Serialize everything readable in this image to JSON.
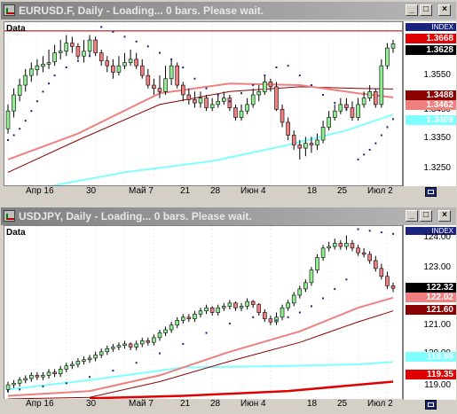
{
  "windows": [
    {
      "title": "EURUSD.F, Daily - Loading... 0 bars. Please wait.",
      "data_label": "Data",
      "index_label": "INDEX",
      "price_ticks": [
        "1.3550",
        "1.3450",
        "1.3350",
        "1.3250"
      ],
      "price_labels": [
        {
          "text": "1.3668",
          "bg": "#e00000",
          "fg": "#ffffff"
        },
        {
          "text": "1.3628",
          "bg": "#000000",
          "fg": "#ffffff"
        },
        {
          "text": "1.3488",
          "bg": "#8b0000",
          "fg": "#ffffff"
        },
        {
          "text": "1.3462",
          "bg": "#f08080",
          "fg": "#ffffff"
        },
        {
          "text": "1.3409",
          "bg": "#7fffff",
          "fg": "#ffffff"
        }
      ],
      "date_ticks": [
        "Апр 16",
        "30",
        "Май 7",
        "21",
        "28",
        "Июн 4",
        "18",
        "25",
        "Июл 2"
      ]
    },
    {
      "title": "USDJPY, Daily - Loading... 0 bars. Please wait.",
      "data_label": "Data",
      "index_label": "INDEX",
      "price_ticks": [
        "124.00",
        "123.00",
        "121.00",
        "120.00",
        "119.00"
      ],
      "price_labels": [
        {
          "text": "122.32",
          "bg": "#000000",
          "fg": "#ffffff"
        },
        {
          "text": "122.02",
          "bg": "#f08080",
          "fg": "#ffffff"
        },
        {
          "text": "121.60",
          "bg": "#8b0000",
          "fg": "#ffffff"
        },
        {
          "text": "119.98",
          "bg": "#7fffff",
          "fg": "#ffffff"
        },
        {
          "text": "119.35",
          "bg": "#e00000",
          "fg": "#ffffff"
        }
      ],
      "date_ticks": [
        "Апр 16",
        "30",
        "Май 7",
        "21",
        "28",
        "Июн 4",
        "18",
        "25",
        "Июл 2"
      ]
    }
  ],
  "chart_data": [
    {
      "type": "candlestick",
      "symbol": "EURUSD.F",
      "timeframe": "Daily",
      "ylim": [
        1.319,
        1.3695
      ],
      "open": [
        1.3365,
        1.342,
        1.3468,
        1.35,
        1.353,
        1.3548,
        1.3558,
        1.3565,
        1.3572,
        1.36,
        1.3605,
        1.363,
        1.362,
        1.359,
        1.3605,
        1.364,
        1.36,
        1.3575,
        1.356,
        1.354,
        1.356,
        1.357,
        1.358,
        1.356,
        1.353,
        1.35,
        1.349,
        1.348,
        1.352,
        1.356,
        1.35,
        1.347,
        1.3455,
        1.3445,
        1.346,
        1.343,
        1.344,
        1.345,
        1.346,
        1.343,
        1.34,
        1.342,
        1.344,
        1.347,
        1.348,
        1.351,
        1.3495,
        1.3425,
        1.3385,
        1.3345,
        1.3315,
        1.3305,
        1.332,
        1.3315,
        1.333,
        1.337,
        1.34,
        1.342,
        1.344,
        1.343,
        1.34,
        1.344,
        1.346,
        1.348,
        1.344,
        1.356,
        1.3615
      ],
      "close": [
        1.342,
        1.347,
        1.35,
        1.353,
        1.355,
        1.356,
        1.3565,
        1.357,
        1.36,
        1.3605,
        1.363,
        1.362,
        1.359,
        1.3605,
        1.364,
        1.36,
        1.3575,
        1.356,
        1.354,
        1.356,
        1.357,
        1.358,
        1.356,
        1.353,
        1.35,
        1.349,
        1.348,
        1.352,
        1.356,
        1.35,
        1.347,
        1.3455,
        1.3445,
        1.346,
        1.343,
        1.344,
        1.345,
        1.346,
        1.343,
        1.34,
        1.342,
        1.344,
        1.347,
        1.348,
        1.351,
        1.3495,
        1.3425,
        1.3385,
        1.3345,
        1.3315,
        1.3305,
        1.332,
        1.3315,
        1.333,
        1.337,
        1.34,
        1.342,
        1.344,
        1.343,
        1.34,
        1.344,
        1.346,
        1.348,
        1.344,
        1.356,
        1.3615,
        1.3628
      ],
      "high": [
        1.344,
        1.349,
        1.352,
        1.355,
        1.357,
        1.358,
        1.359,
        1.361,
        1.3625,
        1.364,
        1.3655,
        1.365,
        1.363,
        1.364,
        1.3655,
        1.365,
        1.361,
        1.359,
        1.358,
        1.359,
        1.36,
        1.361,
        1.36,
        1.358,
        1.355,
        1.352,
        1.353,
        1.356,
        1.358,
        1.357,
        1.351,
        1.349,
        1.348,
        1.348,
        1.347,
        1.346,
        1.347,
        1.348,
        1.347,
        1.344,
        1.344,
        1.346,
        1.349,
        1.35,
        1.353,
        1.352,
        1.351,
        1.344,
        1.34,
        1.336,
        1.333,
        1.334,
        1.334,
        1.335,
        1.339,
        1.342,
        1.344,
        1.346,
        1.346,
        1.345,
        1.346,
        1.348,
        1.35,
        1.349,
        1.358,
        1.363,
        1.364
      ],
      "low": [
        1.335,
        1.34,
        1.345,
        1.348,
        1.351,
        1.353,
        1.354,
        1.355,
        1.356,
        1.358,
        1.359,
        1.36,
        1.358,
        1.357,
        1.359,
        1.359,
        1.356,
        1.354,
        1.352,
        1.353,
        1.355,
        1.356,
        1.355,
        1.352,
        1.349,
        1.347,
        1.346,
        1.347,
        1.35,
        1.349,
        1.345,
        1.344,
        1.343,
        1.343,
        1.342,
        1.342,
        1.343,
        1.344,
        1.342,
        1.339,
        1.339,
        1.341,
        1.343,
        1.345,
        1.347,
        1.348,
        1.342,
        1.337,
        1.333,
        1.33,
        1.327,
        1.328,
        1.329,
        1.33,
        1.332,
        1.336,
        1.339,
        1.341,
        1.342,
        1.339,
        1.339,
        1.343,
        1.345,
        1.343,
        1.343,
        1.355,
        1.36
      ],
      "ma_fast": {
        "color": "#f08080",
        "points": [
          [
            0,
            1.327
          ],
          [
            12,
            1.335
          ],
          [
            26,
            1.3475
          ],
          [
            38,
            1.3505
          ],
          [
            50,
            1.35
          ],
          [
            60,
            1.3475
          ],
          [
            66,
            1.3462
          ]
        ]
      },
      "ma_mid": {
        "color": "#8b0000",
        "points": [
          [
            0,
            1.323
          ],
          [
            12,
            1.333
          ],
          [
            26,
            1.344
          ],
          [
            38,
            1.348
          ],
          [
            50,
            1.3495
          ],
          [
            60,
            1.349
          ],
          [
            66,
            1.3488
          ]
        ]
      },
      "ma_slow": {
        "color": "#7fffff",
        "points": [
          [
            8,
            1.319
          ],
          [
            20,
            1.323
          ],
          [
            35,
            1.3265
          ],
          [
            48,
            1.3315
          ],
          [
            58,
            1.336
          ],
          [
            66,
            1.3409
          ]
        ]
      },
      "resistance": {
        "color": "#8b0000",
        "value": 1.3668
      },
      "sar": [
        [
          0,
          1.333
        ],
        [
          1,
          1.3345
        ],
        [
          2,
          1.3365
        ],
        [
          3,
          1.339
        ],
        [
          4,
          1.342
        ],
        [
          5,
          1.345
        ],
        [
          6,
          1.348
        ],
        [
          7,
          1.3505
        ],
        [
          8,
          1.353
        ],
        [
          10,
          1.3555
        ],
        [
          12,
          1.3575
        ],
        [
          14,
          1.359
        ],
        [
          16,
          1.368
        ],
        [
          18,
          1.3665
        ],
        [
          20,
          1.365
        ],
        [
          22,
          1.3635
        ],
        [
          24,
          1.362
        ],
        [
          26,
          1.36
        ],
        [
          28,
          1.358
        ],
        [
          30,
          1.3555
        ],
        [
          32,
          1.352
        ],
        [
          34,
          1.349
        ],
        [
          36,
          1.347
        ],
        [
          38,
          1.345
        ],
        [
          40,
          1.3475
        ],
        [
          42,
          1.35
        ],
        [
          44,
          1.353
        ],
        [
          46,
          1.3555
        ],
        [
          48,
          1.356
        ],
        [
          50,
          1.353
        ],
        [
          52,
          1.35
        ],
        [
          54,
          1.347
        ],
        [
          56,
          1.3445
        ],
        [
          58,
          1.3425
        ],
        [
          60,
          1.327
        ],
        [
          61,
          1.3285
        ],
        [
          62,
          1.33
        ],
        [
          63,
          1.332
        ],
        [
          64,
          1.3345
        ],
        [
          65,
          1.337
        ],
        [
          66,
          1.3395
        ]
      ]
    },
    {
      "type": "candlestick",
      "symbol": "USDJPY",
      "timeframe": "Daily",
      "ylim": [
        118.8,
        124.3
      ],
      "open": [
        119.1,
        119.25,
        119.3,
        119.4,
        119.45,
        119.55,
        119.5,
        119.55,
        119.65,
        119.6,
        119.75,
        119.85,
        119.9,
        120.0,
        120.05,
        120.1,
        120.2,
        120.3,
        120.4,
        120.45,
        120.5,
        120.55,
        120.45,
        120.55,
        120.65,
        120.6,
        120.75,
        120.9,
        121.0,
        121.15,
        121.3,
        121.4,
        121.35,
        121.5,
        121.6,
        121.7,
        121.55,
        121.7,
        121.75,
        121.85,
        121.7,
        121.75,
        121.9,
        121.8,
        121.55,
        121.35,
        121.25,
        121.4,
        121.7,
        121.85,
        122.1,
        122.3,
        122.5,
        122.9,
        123.3,
        123.6,
        123.65,
        123.75,
        123.65,
        123.75,
        123.6,
        123.45,
        123.4,
        123.2,
        122.95,
        122.7,
        122.4
      ],
      "close": [
        119.25,
        119.3,
        119.4,
        119.45,
        119.55,
        119.5,
        119.55,
        119.65,
        119.6,
        119.75,
        119.85,
        119.9,
        120.0,
        120.05,
        120.1,
        120.2,
        120.3,
        120.4,
        120.45,
        120.5,
        120.55,
        120.45,
        120.55,
        120.65,
        120.6,
        120.75,
        120.9,
        121.0,
        121.15,
        121.3,
        121.4,
        121.35,
        121.5,
        121.6,
        121.7,
        121.55,
        121.7,
        121.75,
        121.85,
        121.7,
        121.75,
        121.9,
        121.8,
        121.55,
        121.35,
        121.25,
        121.4,
        121.7,
        121.85,
        122.1,
        122.3,
        122.5,
        122.9,
        123.3,
        123.6,
        123.65,
        123.75,
        123.65,
        123.75,
        123.6,
        123.45,
        123.4,
        123.2,
        122.95,
        122.7,
        122.4,
        122.32
      ],
      "high": [
        119.35,
        119.4,
        119.5,
        119.55,
        119.65,
        119.65,
        119.65,
        119.75,
        119.75,
        119.85,
        119.95,
        120.0,
        120.1,
        120.15,
        120.2,
        120.3,
        120.4,
        120.5,
        120.55,
        120.6,
        120.65,
        120.6,
        120.65,
        120.75,
        120.75,
        120.85,
        121.0,
        121.1,
        121.25,
        121.4,
        121.5,
        121.5,
        121.6,
        121.7,
        121.8,
        121.75,
        121.8,
        121.85,
        121.95,
        121.9,
        121.85,
        122.0,
        121.95,
        121.85,
        121.65,
        121.45,
        121.55,
        121.8,
        121.95,
        122.2,
        122.4,
        122.6,
        123.0,
        123.4,
        123.7,
        123.8,
        123.9,
        123.85,
        124.0,
        123.85,
        123.7,
        123.6,
        123.5,
        123.35,
        123.1,
        122.85,
        122.5
      ],
      "low": [
        119.0,
        119.15,
        119.2,
        119.3,
        119.35,
        119.4,
        119.4,
        119.45,
        119.5,
        119.5,
        119.65,
        119.75,
        119.8,
        119.9,
        119.95,
        120.0,
        120.1,
        120.2,
        120.3,
        120.35,
        120.4,
        120.35,
        120.35,
        120.45,
        120.5,
        120.5,
        120.65,
        120.8,
        120.9,
        121.05,
        121.2,
        121.25,
        121.25,
        121.4,
        121.5,
        121.45,
        121.45,
        121.6,
        121.65,
        121.6,
        121.6,
        121.65,
        121.7,
        121.45,
        121.25,
        121.15,
        121.15,
        121.3,
        121.6,
        121.75,
        122.0,
        122.2,
        122.4,
        122.8,
        123.2,
        123.5,
        123.55,
        123.55,
        123.55,
        123.5,
        123.35,
        123.3,
        123.1,
        122.85,
        122.6,
        122.3,
        122.2
      ],
      "ma_fast": {
        "color": "#f08080",
        "points": [
          [
            0,
            118.9
          ],
          [
            14,
            119.05
          ],
          [
            26,
            119.55
          ],
          [
            38,
            120.3
          ],
          [
            50,
            120.95
          ],
          [
            60,
            121.7
          ],
          [
            66,
            122.02
          ]
        ]
      },
      "ma_mid": {
        "color": "#8b0000",
        "points": [
          [
            0,
            118.8
          ],
          [
            14,
            118.85
          ],
          [
            26,
            119.35
          ],
          [
            38,
            120.0
          ],
          [
            50,
            120.6
          ],
          [
            60,
            121.25
          ],
          [
            66,
            121.6
          ]
        ]
      },
      "ma_slow": {
        "color": "#7fffff",
        "points": [
          [
            0,
            119.1
          ],
          [
            14,
            119.4
          ],
          [
            30,
            119.8
          ],
          [
            48,
            119.85
          ],
          [
            60,
            119.9
          ],
          [
            66,
            119.98
          ]
        ]
      },
      "support": {
        "color": "#e00000",
        "points": [
          [
            14,
            118.82
          ],
          [
            30,
            118.9
          ],
          [
            48,
            119.05
          ],
          [
            60,
            119.25
          ],
          [
            66,
            119.35
          ]
        ]
      },
      "sar": [
        [
          0,
          119.05
        ],
        [
          2,
          119.1
        ],
        [
          6,
          119.2
        ],
        [
          10,
          119.3
        ],
        [
          14,
          119.5
        ],
        [
          18,
          119.7
        ],
        [
          22,
          119.95
        ],
        [
          26,
          120.25
        ],
        [
          30,
          120.55
        ],
        [
          34,
          120.9
        ],
        [
          38,
          121.2
        ],
        [
          42,
          121.4
        ],
        [
          46,
          121.3
        ],
        [
          48,
          121.4
        ],
        [
          50,
          121.55
        ],
        [
          52,
          121.75
        ],
        [
          54,
          122.0
        ],
        [
          56,
          122.3
        ],
        [
          58,
          122.6
        ],
        [
          60,
          124.2
        ],
        [
          62,
          124.15
        ],
        [
          64,
          124.1
        ],
        [
          66,
          124.05
        ]
      ]
    }
  ]
}
